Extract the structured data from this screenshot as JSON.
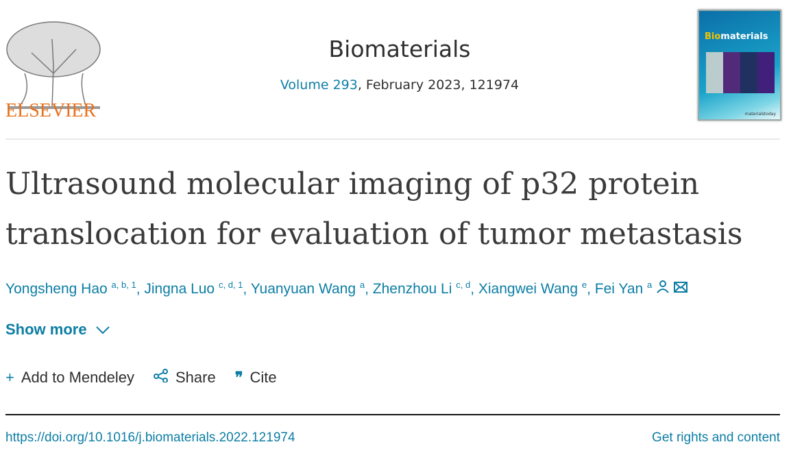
{
  "publisher": {
    "logo_text": "ELSEVIER"
  },
  "journal": {
    "name": "Biomaterials",
    "volume_link": "Volume 293",
    "volume_rest": ", February 2023, 121974",
    "cover_title_bio": "Bio",
    "cover_title_rest": "materials",
    "cover_footer": "materialstoday"
  },
  "article": {
    "title": "Ultrasound molecular imaging of p32 protein translocation for evaluation of tumor metastasis",
    "authors": [
      {
        "name": "Yongsheng Hao",
        "sup": "a, b, 1"
      },
      {
        "name": "Jingna Luo",
        "sup": "c, d, 1"
      },
      {
        "name": "Yuanyuan Wang",
        "sup": "a"
      },
      {
        "name": "Zhenzhou Li",
        "sup": "c, d"
      },
      {
        "name": "Xiangwei Wang",
        "sup": "e"
      },
      {
        "name": "Fei Yan",
        "sup": "a"
      }
    ],
    "show_more": "Show more",
    "actions": {
      "mendeley": "Add to Mendeley",
      "share": "Share",
      "cite": "Cite"
    },
    "doi": "https://doi.org/10.1016/j.biomaterials.2022.121974",
    "rights": "Get rights and content"
  },
  "colors": {
    "link": "#0c7da5",
    "elsevier_orange": "#e9711c"
  }
}
